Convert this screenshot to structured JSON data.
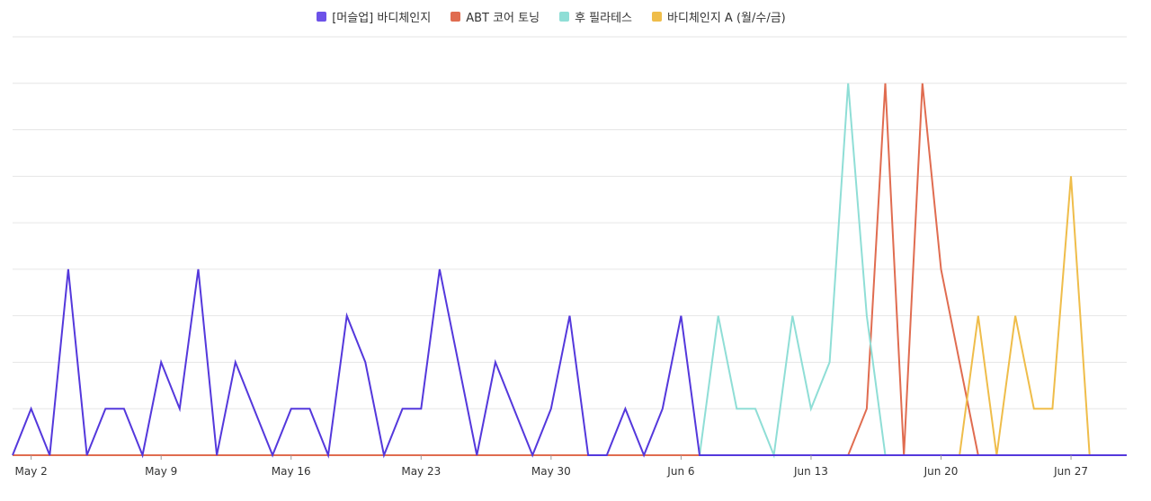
{
  "chart_data": {
    "type": "line",
    "title": "",
    "xlabel": "",
    "ylabel": "",
    "ylim": [
      0,
      9
    ],
    "grid": true,
    "legend_position": "top-center",
    "x_ticks": [
      "May 2",
      "May 9",
      "May 16",
      "May 23",
      "May 30",
      "Jun 6",
      "Jun 13",
      "Jun 20",
      "Jun 27"
    ],
    "x_start": "2022-05-01",
    "x_end": "2022-06-30",
    "series": [
      {
        "name": "[머슬업] 바디체인지",
        "color": "#5438dc",
        "values": [
          0,
          1,
          0,
          4,
          0,
          1,
          1,
          0,
          2,
          1,
          4,
          0,
          2,
          1,
          0,
          1,
          1,
          0,
          3,
          2,
          0,
          1,
          1,
          4,
          2,
          0,
          2,
          1,
          0,
          1,
          3,
          0,
          0,
          1,
          0,
          1,
          3,
          0,
          0,
          0,
          0,
          0,
          0,
          0,
          0,
          0,
          0,
          0,
          0,
          0,
          0,
          0,
          0,
          0,
          0,
          0,
          0,
          0,
          0,
          0,
          0
        ]
      },
      {
        "name": "ABT 코어 토닝",
        "color": "#e06c50",
        "values": [
          0,
          0,
          0,
          0,
          0,
          0,
          0,
          0,
          0,
          0,
          0,
          0,
          0,
          0,
          0,
          0,
          0,
          0,
          0,
          0,
          0,
          0,
          0,
          0,
          0,
          0,
          0,
          0,
          0,
          0,
          0,
          0,
          0,
          0,
          0,
          0,
          0,
          0,
          0,
          0,
          0,
          0,
          0,
          0,
          0,
          0,
          1,
          8,
          0,
          8,
          4,
          2,
          0,
          null,
          null,
          null,
          null,
          null,
          null,
          null,
          null
        ]
      },
      {
        "name": "후 필라테스",
        "color": "#8fded6",
        "values": [
          null,
          null,
          null,
          null,
          null,
          null,
          null,
          null,
          null,
          null,
          null,
          null,
          null,
          null,
          null,
          null,
          null,
          null,
          null,
          null,
          null,
          null,
          null,
          null,
          null,
          null,
          null,
          null,
          null,
          null,
          null,
          null,
          null,
          null,
          null,
          null,
          null,
          0,
          3,
          1,
          1,
          0,
          3,
          1,
          2,
          8,
          3,
          0,
          null,
          null,
          null,
          null,
          null,
          null,
          null,
          null,
          null,
          null,
          null,
          null,
          null
        ]
      },
      {
        "name": "바디체인지 A (월/수/금)",
        "color": "#efbd4a",
        "values": [
          null,
          null,
          null,
          null,
          null,
          null,
          null,
          null,
          null,
          null,
          null,
          null,
          null,
          null,
          null,
          null,
          null,
          null,
          null,
          null,
          null,
          null,
          null,
          null,
          null,
          null,
          null,
          null,
          null,
          null,
          null,
          null,
          null,
          null,
          null,
          null,
          null,
          null,
          null,
          null,
          null,
          null,
          null,
          null,
          null,
          null,
          null,
          null,
          null,
          null,
          null,
          0,
          3,
          0,
          3,
          1,
          1,
          6,
          0,
          null,
          null
        ]
      }
    ]
  }
}
